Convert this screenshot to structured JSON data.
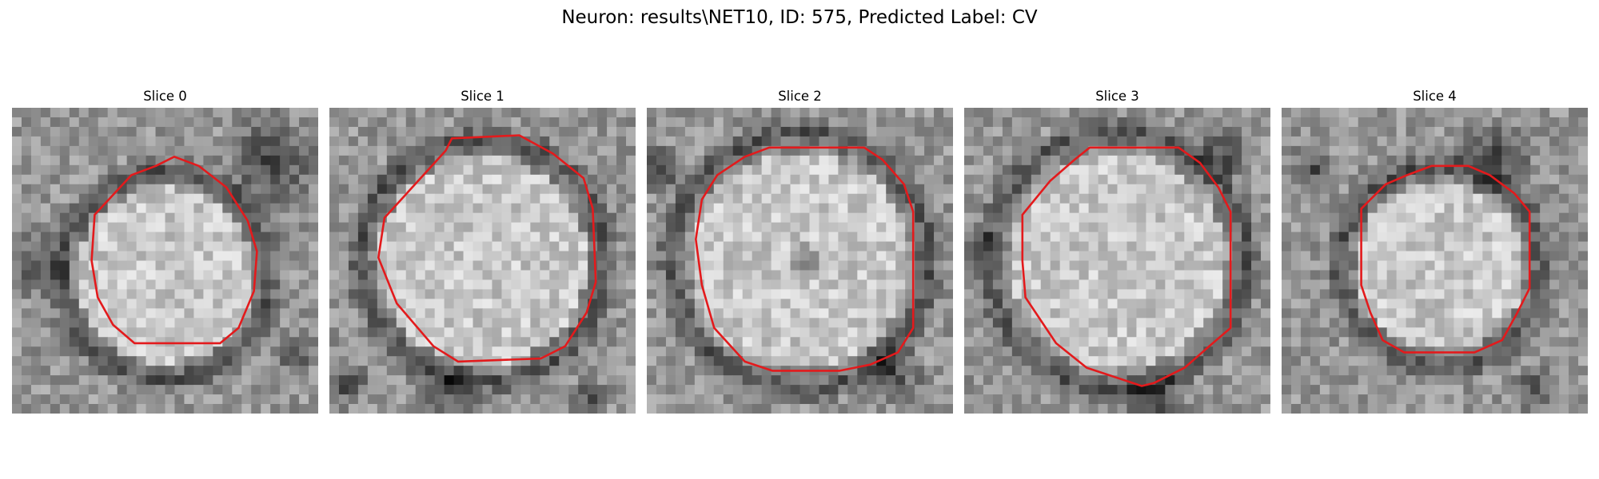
{
  "figure": {
    "title": "Neuron: results\\NET10, ID: 575, Predicted Label: CV"
  },
  "slices": [
    {
      "title": "Slice 0"
    },
    {
      "title": "Slice 1"
    },
    {
      "title": "Slice 2"
    },
    {
      "title": "Slice 3"
    },
    {
      "title": "Slice 4"
    }
  ],
  "colors": {
    "contour": "#e31a1c",
    "background": "#ffffff"
  }
}
